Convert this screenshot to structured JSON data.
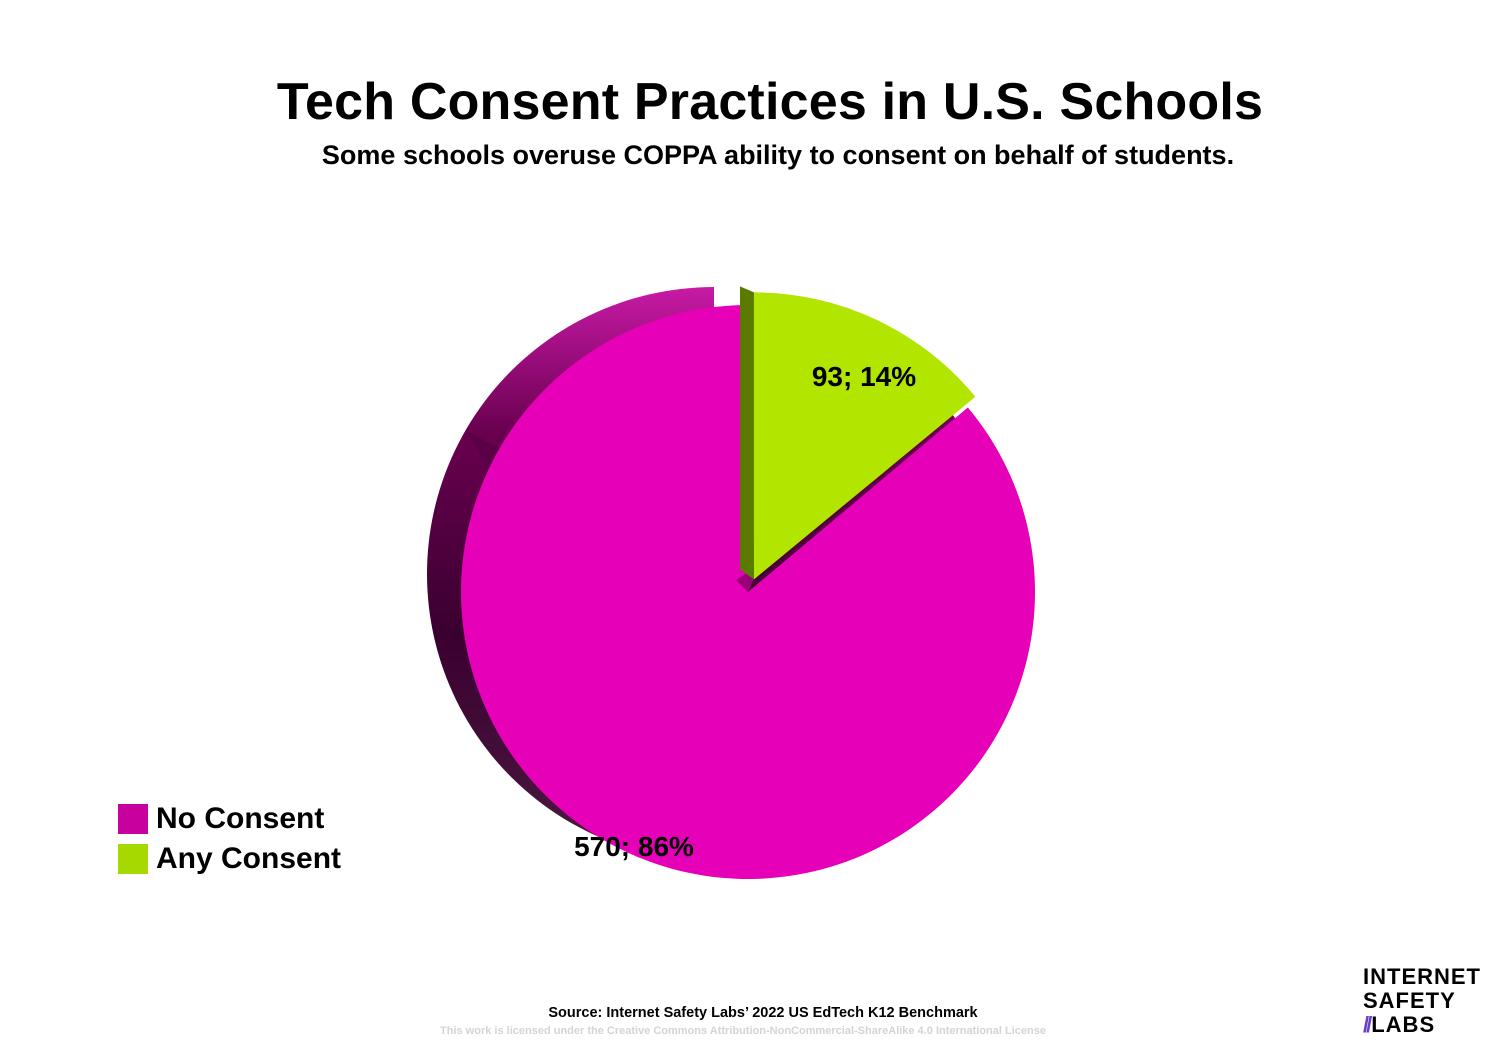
{
  "header": {
    "title": "Tech Consent Practices in U.S. Schools",
    "subtitle": "Some schools overuse COPPA ability to consent on behalf of students."
  },
  "chart_data": {
    "type": "pie",
    "title": "Tech Consent Practices in U.S. Schools",
    "subtitle": "Some schools overuse COPPA ability to consent on behalf of students.",
    "categories": [
      "No Consent",
      "Any Consent"
    ],
    "values": [
      570,
      93
    ],
    "percentages": [
      86,
      14
    ],
    "data_labels": [
      "570; 86%",
      "93; 14%"
    ],
    "colors": [
      "#e600b8",
      "#b2e600"
    ],
    "exploded": "Any Consent",
    "style": "3d",
    "legend_position": "bottom-left"
  },
  "legend": {
    "items": [
      {
        "label": "No Consent",
        "color": "#c8009e"
      },
      {
        "label": "Any Consent",
        "color": "#a6d900"
      }
    ]
  },
  "footer": {
    "source": "Source: Internet Safety Labs’ 2022 US EdTech K12 Benchmark",
    "license": "This work is licensed under the Creative Commons Attribution-NonCommercial-ShareAlike 4.0 International License"
  },
  "logo": {
    "line1": "INTERNET",
    "line2": "SAFETY",
    "line3_prefix": "//",
    "line3": "LABS"
  }
}
